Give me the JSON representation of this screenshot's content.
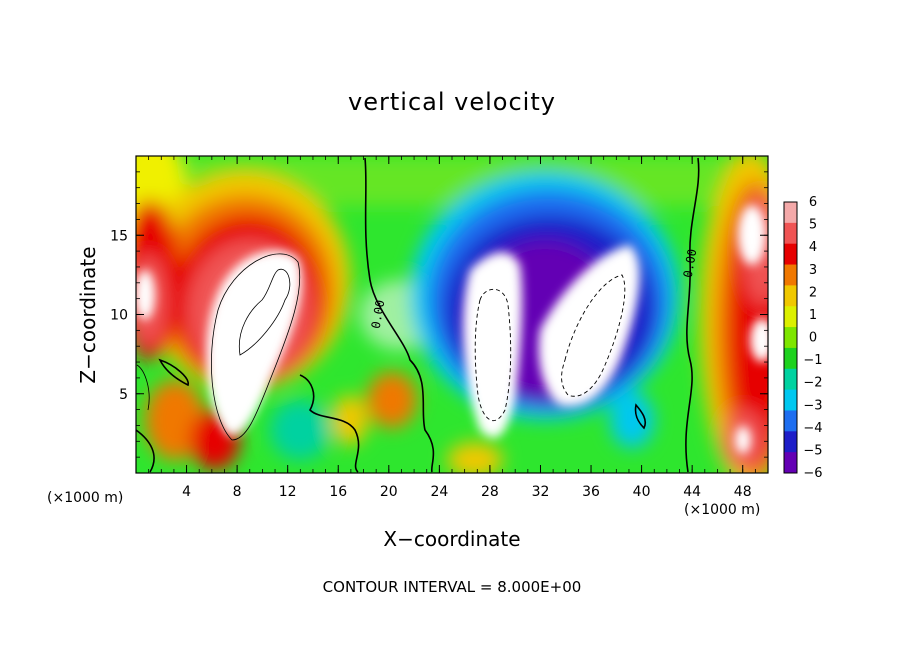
{
  "chart_data": {
    "type": "heatmap",
    "title": "vertical velocity",
    "xlabel": "X−coordinate",
    "ylabel": "Z−coordinate",
    "x_unit": "(×1000 m)",
    "xlim": [
      0,
      50
    ],
    "ylim": [
      0,
      20
    ],
    "x_ticks": [
      "4",
      "8",
      "12",
      "16",
      "20",
      "24",
      "28",
      "32",
      "36",
      "40",
      "44",
      "48"
    ],
    "y_ticks": [
      "5",
      "10",
      "15"
    ],
    "colorbar": {
      "labels": [
        "6",
        "5",
        "4",
        "3",
        "2",
        "1",
        "0",
        "−1",
        "−2",
        "−3",
        "−4",
        "−5",
        "−6"
      ],
      "range": [
        -6,
        6
      ],
      "colors": [
        "#f4a9a9",
        "#f05454",
        "#e60000",
        "#f07800",
        "#f0c800",
        "#dcf000",
        "#7ee600",
        "#1ed21e",
        "#00d2a0",
        "#00c8f0",
        "#1e6ef0",
        "#1e1ec8",
        "#6400b4"
      ]
    },
    "contour_interval_text": "CONTOUR INTERVAL = 8.000E+00",
    "contour_labels": [
      "0.00",
      "0.00"
    ],
    "features": [
      {
        "kind": "updraft",
        "x": 9,
        "z": 9,
        "value": 12
      },
      {
        "kind": "updraft",
        "x": 1,
        "z": 11,
        "value": 8
      },
      {
        "kind": "updraft",
        "x": 49,
        "z": 13,
        "value": 8
      },
      {
        "kind": "updraft",
        "x": 48.5,
        "z": 3,
        "value": 6
      },
      {
        "kind": "updraft",
        "x": 21,
        "z": 4,
        "value": 3
      },
      {
        "kind": "downdraft",
        "x": 29,
        "z": 8,
        "value": -14
      },
      {
        "kind": "downdraft",
        "x": 36,
        "z": 9,
        "value": -14
      },
      {
        "kind": "downdraft",
        "x": 33,
        "z": 13,
        "value": -5
      }
    ]
  }
}
